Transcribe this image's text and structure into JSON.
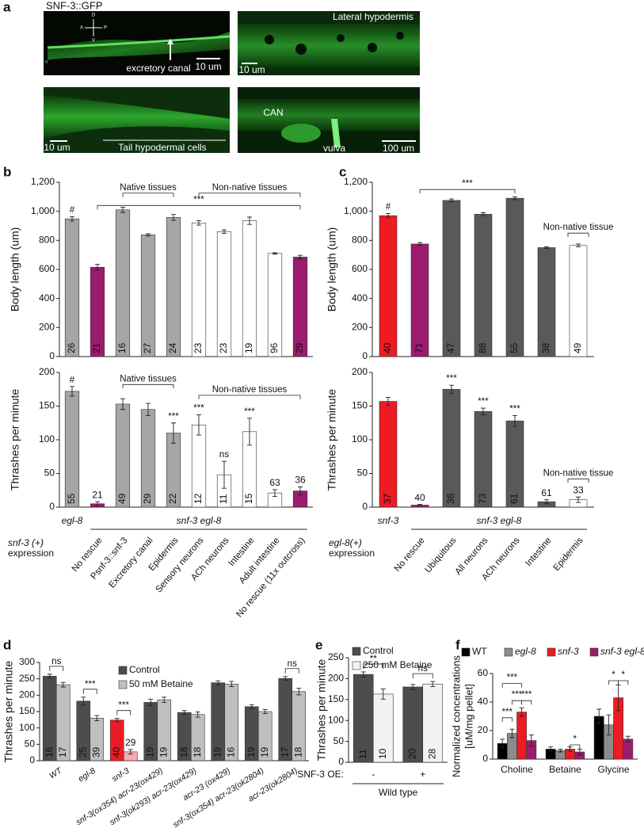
{
  "panel_a": {
    "panel": "a",
    "title": "SNF-3::GFP",
    "compass": [
      "D",
      "A",
      "P",
      "V"
    ],
    "images": [
      {
        "labels": [
          "excretory canal",
          "10 um"
        ]
      },
      {
        "labels": [
          "Lateral hypodermis",
          "10 um"
        ]
      },
      {
        "labels": [
          "Tail hypodermal cells",
          "10 um"
        ]
      },
      {
        "labels": [
          "CAN",
          "vulva",
          "100 um"
        ]
      }
    ]
  },
  "chart_data": [
    {
      "panel": "b",
      "type": "bar",
      "ylabel": "Body length (um)",
      "ylim": [
        0,
        1200
      ],
      "yticks": [
        0,
        200,
        400,
        600,
        800,
        {
          "value": 1000,
          "label": "1,000"
        },
        {
          "value": 1200,
          "label": "1,200"
        }
      ],
      "values": [
        948,
        615,
        1010,
        838,
        958,
        920,
        860,
        935,
        710,
        685
      ],
      "errors": [
        15,
        20,
        18,
        8,
        20,
        15,
        12,
        25,
        5,
        12
      ],
      "colors": [
        "#a6a6a6",
        "#9b1c6e",
        "#a6a6a6",
        "#a6a6a6",
        "#a6a6a6",
        "#ffffff",
        "#ffffff",
        "#ffffff",
        "#ffffff",
        "#9b1c6e"
      ],
      "n": [
        26,
        21,
        16,
        27,
        24,
        23,
        23,
        19,
        96,
        29
      ],
      "marks": [
        "#",
        null,
        null,
        null,
        null,
        null,
        null,
        null,
        null,
        null
      ],
      "annotations": [
        "Native tissues",
        "Non-native tissues",
        "***"
      ]
    },
    {
      "type": "bar",
      "ylabel": "Thrashes per minute",
      "ylim": [
        0,
        200
      ],
      "yticks": [
        0,
        50,
        100,
        150,
        200
      ],
      "categories": [
        null,
        "No rescue",
        "Psnf-3::snf-3",
        "Excretory canal",
        "Epidermis",
        "Sensory neurons",
        "ACh neurons",
        "Intestine",
        "Adult intestine",
        "No rescue (11x outcross)"
      ],
      "values": [
        172,
        5,
        153,
        145,
        110,
        122,
        48,
        112,
        21,
        24
      ],
      "errors": [
        7,
        3,
        8,
        9,
        15,
        15,
        20,
        20,
        5,
        6
      ],
      "colors": [
        "#a6a6a6",
        "#9b1c6e",
        "#a6a6a6",
        "#a6a6a6",
        "#a6a6a6",
        "#ffffff",
        "#ffffff",
        "#ffffff",
        "#ffffff",
        "#9b1c6e"
      ],
      "n": [
        55,
        21,
        49,
        29,
        22,
        12,
        11,
        15,
        63,
        36
      ],
      "marks": [
        "#",
        null,
        null,
        null,
        "***",
        "***",
        "ns",
        "***",
        null,
        null
      ],
      "annotations": [
        "Native tissues",
        "Non-native tissues"
      ],
      "group_labels": [
        "egl-8",
        "snf-3 egl-8"
      ],
      "row_label": [
        "snf-3 (+)",
        "expression"
      ]
    },
    {
      "panel": "c",
      "type": "bar",
      "ylabel": "Body length (um)",
      "ylim": [
        0,
        1200
      ],
      "yticks": [
        0,
        200,
        400,
        600,
        800,
        {
          "value": 1000,
          "label": "1,000"
        },
        {
          "value": 1200,
          "label": "1,200"
        }
      ],
      "values": [
        970,
        775,
        1075,
        980,
        1090,
        750,
        765
      ],
      "errors": [
        15,
        10,
        10,
        10,
        10,
        5,
        10
      ],
      "colors": [
        "#ec1c24",
        "#9b1c6e",
        "#595959",
        "#595959",
        "#595959",
        "#595959",
        "#ffffff"
      ],
      "n": [
        40,
        71,
        47,
        88,
        55,
        38,
        49
      ],
      "marks": [
        "#",
        null,
        null,
        null,
        null,
        null,
        null
      ],
      "annotations": [
        "***",
        "Non-native tissue"
      ]
    },
    {
      "type": "bar",
      "ylabel": "Thrashes per minute",
      "ylim": [
        0,
        200
      ],
      "yticks": [
        0,
        50,
        100,
        150,
        200
      ],
      "categories": [
        null,
        "No rescue",
        "Ubiquitous",
        "All neurons",
        "ACh neurons",
        "Intestine",
        "Epidermis"
      ],
      "values": [
        157,
        3,
        175,
        142,
        128,
        8,
        11
      ],
      "errors": [
        6,
        1,
        6,
        5,
        8,
        3,
        4
      ],
      "colors": [
        "#ec1c24",
        "#9b1c6e",
        "#595959",
        "#595959",
        "#595959",
        "#595959",
        "#ffffff"
      ],
      "n": [
        37,
        40,
        36,
        73,
        61,
        61,
        33
      ],
      "marks": [
        null,
        null,
        "***",
        "***",
        "***",
        null,
        null
      ],
      "annotations": [
        "Non-native tissue"
      ],
      "group_labels": [
        "snf-3",
        "snf-3 egl-8"
      ],
      "row_label": [
        "egl-8(+)",
        "expression"
      ]
    },
    {
      "panel": "d",
      "type": "bar",
      "ylabel": "Thrashes per minute",
      "ylim": [
        0,
        300
      ],
      "yticks": [
        0,
        50,
        100,
        150,
        200,
        250,
        300
      ],
      "categories": [
        "WT",
        "egl-8",
        "snf-3",
        "snf-3(ox354) acr-23(ox429)",
        "snf-3(ok293) acr-23(ox429)",
        "acr-23 (ox429)",
        "snf-3(ox354) acr-23(ok2804)",
        "acr-23(ok2804)"
      ],
      "series": [
        {
          "name": "Control",
          "color": "#4d4d4d",
          "colors": [
            "#4d4d4d",
            "#4d4d4d",
            "#ec1c24",
            "#4d4d4d",
            "#4d4d4d",
            "#4d4d4d",
            "#4d4d4d",
            "#4d4d4d"
          ],
          "values": [
            258,
            182,
            124,
            178,
            147,
            238,
            165,
            251
          ],
          "errors": [
            6,
            12,
            5,
            10,
            6,
            6,
            6,
            6
          ],
          "n": [
            16,
            25,
            40,
            19,
            18,
            19,
            19,
            17
          ]
        },
        {
          "name": "50 mM Betaine",
          "color": "#bfbfbf",
          "colors": [
            "#bfbfbf",
            "#bfbfbf",
            "#f7a9b4",
            "#bfbfbf",
            "#bfbfbf",
            "#bfbfbf",
            "#bfbfbf",
            "#bfbfbf"
          ],
          "values": [
            232,
            130,
            27,
            186,
            141,
            234,
            150,
            211
          ],
          "errors": [
            7,
            8,
            7,
            8,
            8,
            8,
            6,
            10
          ],
          "n": [
            17,
            39,
            29,
            19,
            18,
            16,
            19,
            18
          ]
        }
      ],
      "marks": [
        "ns",
        "***",
        "***",
        null,
        null,
        null,
        null,
        "ns"
      ]
    },
    {
      "panel": "e",
      "type": "bar",
      "ylabel": "Thrashes per minute",
      "ylim": [
        0,
        250
      ],
      "yticks": [
        0,
        50,
        100,
        150,
        200,
        250
      ],
      "categories": [
        "-",
        "+"
      ],
      "x_label": "SNF-3 OE:",
      "group_labels": [
        "Wild type"
      ],
      "series": [
        {
          "name": "Control",
          "color": "#4d4d4d",
          "colors": [
            "#4d4d4d",
            "#4d4d4d"
          ],
          "values": [
            210,
            180
          ],
          "errors": [
            6,
            6
          ],
          "n": [
            11,
            20
          ]
        },
        {
          "name": "250 mM Betaine",
          "color": "#f2f2f2",
          "colors": [
            "#f2f2f2",
            "#f2f2f2"
          ],
          "values": [
            163,
            187
          ],
          "errors": [
            12,
            6
          ],
          "n": [
            10,
            28
          ]
        }
      ],
      "marks": [
        "**",
        "ns"
      ]
    },
    {
      "panel": "f",
      "type": "bar",
      "ylabel": [
        "Normalized concentrations",
        "[uM/mg pellet]"
      ],
      "ylim": [
        0,
        60
      ],
      "yticks": [
        0,
        20,
        40,
        60
      ],
      "categories": [
        "Choline",
        "Betaine",
        "Glycine"
      ],
      "series": [
        {
          "name": "WT",
          "color": "#000000",
          "colors": [
            "#000000",
            "#000000",
            "#000000"
          ],
          "values": [
            11,
            7,
            30
          ],
          "errors": [
            3,
            1.5,
            5
          ]
        },
        {
          "name": "egl-8",
          "color": "#8c8c8c",
          "colors": [
            "#8c8c8c",
            "#8c8c8c",
            "#8c8c8c"
          ],
          "values": [
            18,
            6,
            24
          ],
          "errors": [
            3,
            1,
            7
          ]
        },
        {
          "name": "snf-3",
          "color": "#ec1c24",
          "colors": [
            "#ec1c24",
            "#ec1c24",
            "#ec1c24"
          ],
          "values": [
            33,
            7,
            43
          ],
          "errors": [
            3,
            1.5,
            9
          ]
        },
        {
          "name": "snf-3 egl-8",
          "color": "#9b1c6e",
          "colors": [
            "#9b1c6e",
            "#9b1c6e",
            "#9b1c6e"
          ],
          "values": [
            13,
            5,
            14
          ],
          "errors": [
            4,
            2,
            2
          ]
        }
      ],
      "annotations": [
        "***",
        "***",
        "***",
        "***",
        "*",
        "*",
        "*"
      ]
    }
  ]
}
